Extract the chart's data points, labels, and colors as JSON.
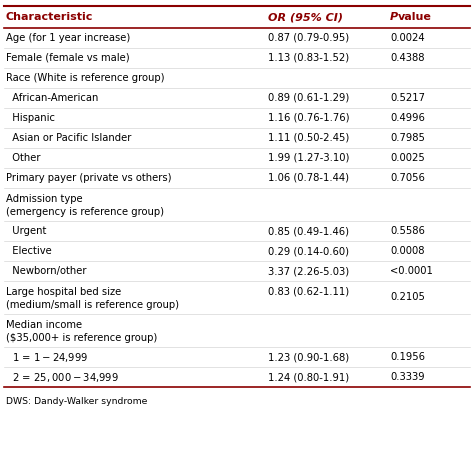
{
  "header": [
    "Characteristic",
    "OR (95% CI)",
    "P value"
  ],
  "rows": [
    {
      "char": "Age (for 1 year increase)",
      "or_ci": "0.87 (0.79-0.95)",
      "pval": "0.0024",
      "indent": 0,
      "has_data": true,
      "nlines": 1
    },
    {
      "char": "Female (female vs male)",
      "or_ci": "1.13 (0.83-1.52)",
      "pval": "0.4388",
      "indent": 0,
      "has_data": true,
      "nlines": 1
    },
    {
      "char": "Race (White is reference group)",
      "or_ci": "",
      "pval": "",
      "indent": 0,
      "has_data": false,
      "nlines": 1
    },
    {
      "char": "  African-American",
      "or_ci": "0.89 (0.61-1.29)",
      "pval": "0.5217",
      "indent": 1,
      "has_data": true,
      "nlines": 1
    },
    {
      "char": "  Hispanic",
      "or_ci": "1.16 (0.76-1.76)",
      "pval": "0.4996",
      "indent": 1,
      "has_data": true,
      "nlines": 1
    },
    {
      "char": "  Asian or Pacific Islander",
      "or_ci": "1.11 (0.50-2.45)",
      "pval": "0.7985",
      "indent": 1,
      "has_data": true,
      "nlines": 1
    },
    {
      "char": "  Other",
      "or_ci": "1.99 (1.27-3.10)",
      "pval": "0.0025",
      "indent": 1,
      "has_data": true,
      "nlines": 1
    },
    {
      "char": "Primary payer (private vs others)",
      "or_ci": "1.06 (0.78-1.44)",
      "pval": "0.7056",
      "indent": 0,
      "has_data": true,
      "nlines": 1
    },
    {
      "char": "Admission type",
      "or_ci": "",
      "pval": "",
      "indent": 0,
      "has_data": false,
      "nlines": 2,
      "line2": "(emergency is reference group)"
    },
    {
      "char": "  Urgent",
      "or_ci": "0.85 (0.49-1.46)",
      "pval": "0.5586",
      "indent": 1,
      "has_data": true,
      "nlines": 1
    },
    {
      "char": "  Elective",
      "or_ci": "0.29 (0.14-0.60)",
      "pval": "0.0008",
      "indent": 1,
      "has_data": true,
      "nlines": 1
    },
    {
      "char": "  Newborn/other",
      "or_ci": "3.37 (2.26-5.03)",
      "pval": "<0.0001",
      "indent": 1,
      "has_data": true,
      "nlines": 1
    },
    {
      "char": "Large hospital bed size",
      "or_ci": "0.83 (0.62-1.11)",
      "pval": "0.2105",
      "indent": 0,
      "has_data": true,
      "nlines": 2,
      "line2": "(medium/small is reference group)"
    },
    {
      "char": "Median income",
      "or_ci": "",
      "pval": "",
      "indent": 0,
      "has_data": false,
      "nlines": 2,
      "line2": "($35,000+ is reference group)"
    },
    {
      "char": "  1 = $1-$24,999",
      "or_ci": "1.23 (0.90-1.68)",
      "pval": "0.1956",
      "indent": 1,
      "has_data": true,
      "nlines": 1
    },
    {
      "char": "  2 = $25,000-$34,999",
      "or_ci": "1.24 (0.80-1.91)",
      "pval": "0.3339",
      "indent": 1,
      "has_data": true,
      "nlines": 1
    }
  ],
  "footer": "DWS: Dandy-Walker syndrome",
  "header_color": "#8B0000",
  "bg_color": "#FFFFFF",
  "font_size": 7.2,
  "header_font_size": 8.0
}
